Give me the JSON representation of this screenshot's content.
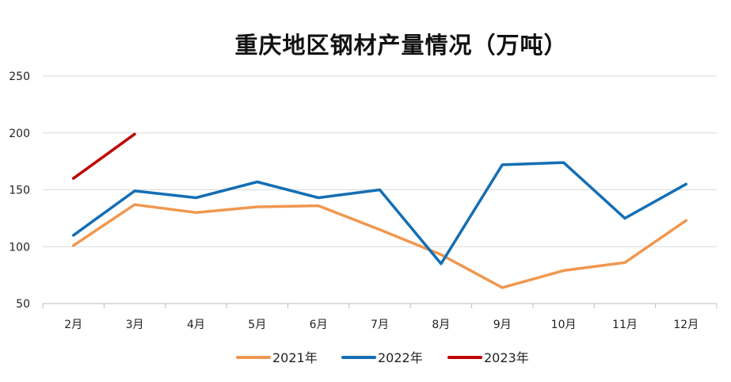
{
  "chart_data": {
    "type": "line",
    "title": "重庆地区钢材产量情况（万吨）",
    "categories": [
      "2月",
      "3月",
      "4月",
      "5月",
      "6月",
      "7月",
      "8月",
      "9月",
      "10月",
      "11月",
      "12月"
    ],
    "ylim": [
      50,
      250
    ],
    "yticks": [
      50,
      100,
      150,
      200,
      250
    ],
    "grid": true,
    "legend_position": "bottom",
    "series": [
      {
        "name": "2021年",
        "color": "#F0974F",
        "values": [
          101,
          137,
          130,
          135,
          136,
          115,
          93,
          64,
          79,
          86,
          123
        ]
      },
      {
        "name": "2022年",
        "color": "#146EB4",
        "values": [
          110,
          149,
          143,
          157,
          143,
          150,
          85,
          172,
          174,
          125,
          155
        ]
      },
      {
        "name": "2023年",
        "color": "#C00000",
        "values": [
          160,
          199,
          null,
          null,
          null,
          null,
          null,
          null,
          null,
          null,
          null
        ]
      }
    ]
  }
}
